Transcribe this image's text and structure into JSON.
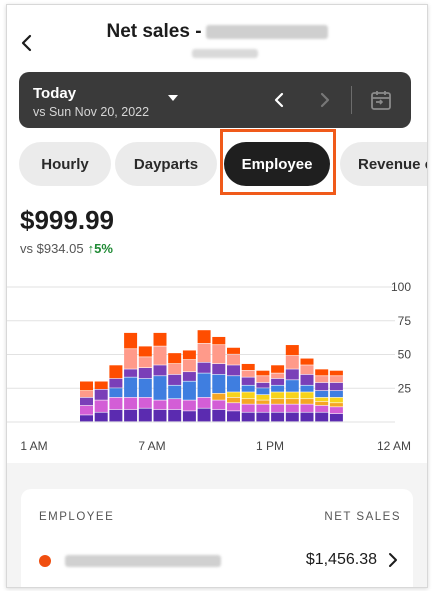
{
  "header": {
    "title": "Net sales -"
  },
  "date_selector": {
    "label": "Today",
    "compare": "vs Sun Nov 20, 2022"
  },
  "tabs": [
    {
      "label": "Hourly"
    },
    {
      "label": "Dayparts"
    },
    {
      "label": "Employee",
      "active": true
    },
    {
      "label": "Revenue c"
    }
  ],
  "summary": {
    "amount": "$999.99",
    "compare": "vs $934.05",
    "change": "↑5%"
  },
  "colors": {
    "accent": "#f05a1a",
    "positive": "#1f8a34",
    "dark": "#3a3a3a"
  },
  "chart_data": {
    "type": "bar",
    "stacked": true,
    "y_ticks": [
      "100",
      "75",
      "50",
      "25"
    ],
    "ylim": [
      0,
      100
    ],
    "x_tick_labels": [
      "1 AM",
      "7 AM",
      "1 PM",
      "12 AM"
    ],
    "segment_colors": [
      "#5b2bb0",
      "#d35ed6",
      "#f5a623",
      "#f7d31a",
      "#3f7ee0",
      "#7a3fb8",
      "#ff9a8a",
      "#ff4d00"
    ],
    "bars": [
      [
        5,
        7,
        0,
        0,
        0,
        6,
        5,
        7
      ],
      [
        7,
        9,
        0,
        0,
        0,
        8,
        0,
        6
      ],
      [
        9,
        9,
        0,
        0,
        7,
        7,
        0,
        10
      ],
      [
        9,
        9,
        0,
        0,
        15,
        6,
        15,
        12
      ],
      [
        10,
        8,
        0,
        0,
        14,
        8,
        8,
        8
      ],
      [
        9,
        7,
        0,
        0,
        18,
        8,
        14,
        10
      ],
      [
        9,
        8,
        0,
        0,
        10,
        8,
        8,
        8
      ],
      [
        8,
        8,
        0,
        0,
        14,
        7,
        9,
        7
      ],
      [
        10,
        8,
        0,
        0,
        18,
        8,
        14,
        10
      ],
      [
        9,
        7,
        5,
        0,
        14,
        8,
        14,
        6
      ],
      [
        8,
        6,
        4,
        4,
        12,
        8,
        8,
        5
      ],
      [
        7,
        6,
        4,
        5,
        5,
        6,
        5,
        5
      ],
      [
        7,
        6,
        3,
        4,
        5,
        4,
        5,
        4
      ],
      [
        7,
        6,
        4,
        5,
        5,
        5,
        4,
        6
      ],
      [
        7,
        6,
        4,
        5,
        9,
        8,
        10,
        8
      ],
      [
        7,
        6,
        4,
        5,
        5,
        8,
        7,
        5
      ],
      [
        7,
        5,
        3,
        3,
        5,
        6,
        5,
        5
      ],
      [
        6,
        5,
        3,
        4,
        5,
        6,
        5,
        4
      ]
    ]
  },
  "employee_table": {
    "header_left": "EMPLOYEE",
    "header_right": "NET SALES",
    "rows": [
      {
        "value": "$1,456.38",
        "dot_color": "#f04e10"
      }
    ]
  }
}
